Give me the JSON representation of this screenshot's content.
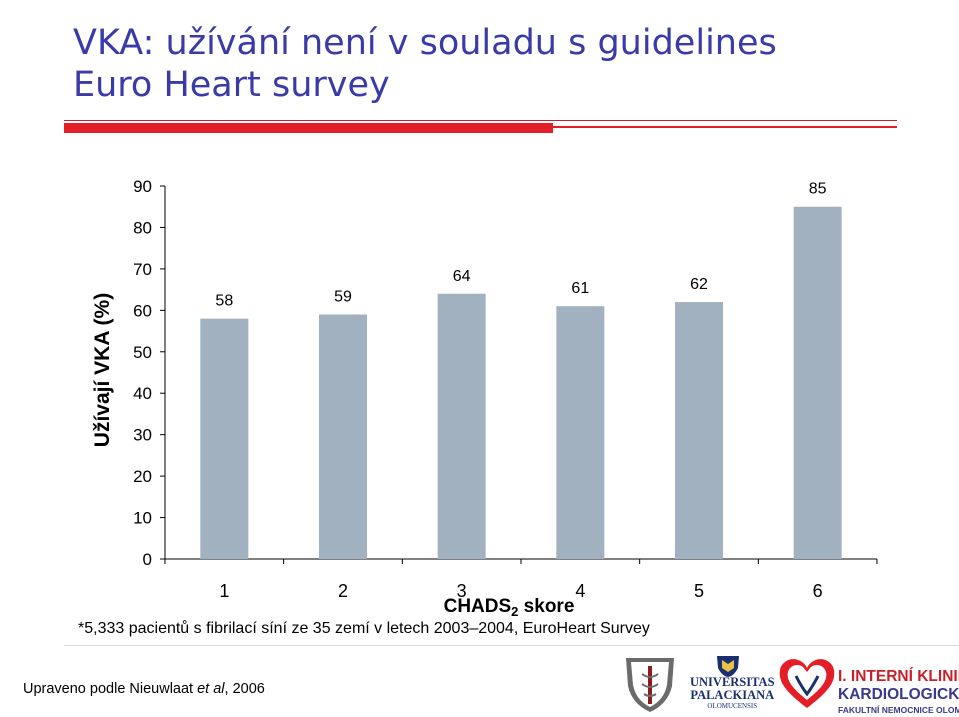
{
  "slide": {
    "title_line1": "VKA: užívání není v souladu s guidelines",
    "title_line2": "Euro Heart survey",
    "footnote": "*5,333 pacientů s fibrilací síní ze 35 zemí v letech 2003–2004, EuroHeart Survey",
    "source_prefix": "Upraveno podle Nieuwlaat ",
    "source_italic": "et al",
    "source_suffix": ", 2006"
  },
  "logos": {
    "university_line1": "UNIVERSITAS",
    "university_line2": "PALACKIANA",
    "university_line3": "OLOMUCENSIS",
    "clinic_line1": "I. INTERNÍ KLINIKA",
    "clinic_line2": "KARDIOLOGICKÁ",
    "clinic_line3": "FAKULTNÍ NEMOCNICE OLOMOUC",
    "accent_red": "#e41e26",
    "accent_blue": "#1a2f6e"
  },
  "chart_data": {
    "type": "bar",
    "categories": [
      "1",
      "2",
      "3",
      "4",
      "5",
      "6"
    ],
    "values": [
      58,
      59,
      64,
      61,
      62,
      85
    ],
    "ylabel": "Užívají VKA (%)",
    "xlabel_main": "CHADS",
    "xlabel_sub": "2",
    "xlabel_tail": " skore",
    "ylim": [
      0,
      90
    ],
    "yticks": [
      0,
      10,
      20,
      30,
      40,
      50,
      60,
      70,
      80,
      90
    ],
    "bar_color": "#a2b1c0",
    "grid": false,
    "data_labels": true
  }
}
